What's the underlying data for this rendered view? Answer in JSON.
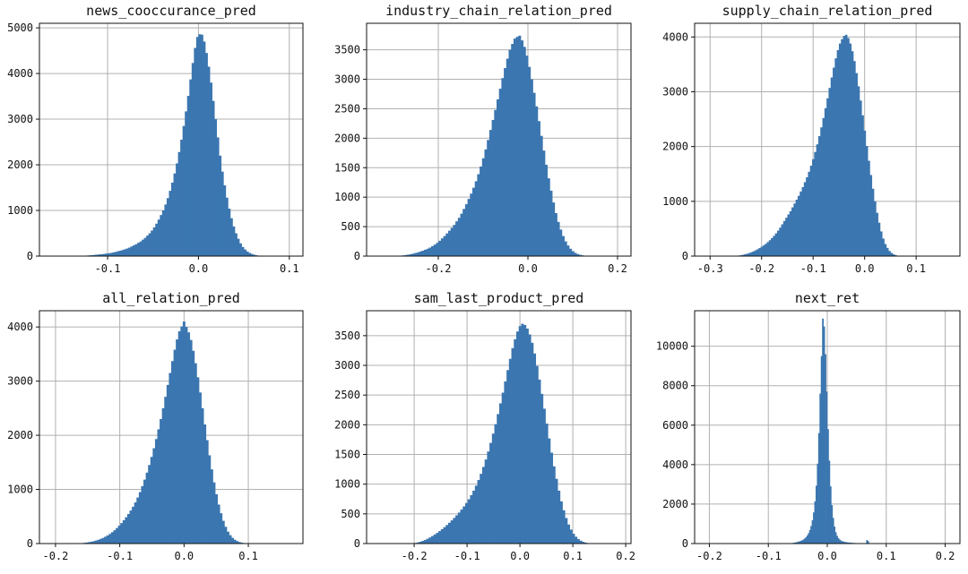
{
  "chart_data": [
    {
      "type": "bar",
      "title": "news_cooccurance_pred",
      "xlim": [
        -0.175,
        0.115
      ],
      "ylim": [
        0,
        5100
      ],
      "xticks": [
        -0.1,
        0.0,
        0.1
      ],
      "xtick_labels": [
        "-0.1",
        "0.0",
        "0.1"
      ],
      "yticks": [
        0,
        1000,
        2000,
        3000,
        4000,
        5000
      ],
      "ytick_labels": [
        "0",
        "1000",
        "2000",
        "3000",
        "4000",
        "5000"
      ],
      "grid": true,
      "color": "#3b76b0",
      "bins": {
        "start": -0.15,
        "end": 0.1,
        "count": 100
      },
      "heights": [
        0,
        0,
        0,
        0,
        0,
        0,
        0,
        0,
        0,
        8,
        10,
        14,
        18,
        22,
        28,
        32,
        38,
        42,
        48,
        56,
        62,
        70,
        80,
        92,
        105,
        118,
        132,
        148,
        165,
        185,
        210,
        235,
        260,
        290,
        320,
        360,
        400,
        450,
        500,
        560,
        630,
        710,
        800,
        900,
        1000,
        1130,
        1270,
        1430,
        1610,
        1810,
        2030,
        2280,
        2550,
        2850,
        3170,
        3510,
        3870,
        4230,
        4560,
        4800,
        4860,
        4850,
        4700,
        4450,
        4150,
        3800,
        3400,
        3000,
        2600,
        2200,
        1850,
        1550,
        1280,
        1040,
        830,
        650,
        500,
        380,
        280,
        200,
        145,
        100,
        70,
        48,
        30,
        18,
        10,
        5,
        0,
        0,
        0,
        0,
        0,
        0,
        0,
        0,
        0,
        0,
        0,
        0
      ]
    },
    {
      "type": "bar",
      "title": "industry_chain_relation_pred",
      "xlim": [
        -0.36,
        0.23
      ],
      "ylim": [
        0,
        3950
      ],
      "xticks": [
        -0.2,
        0.0,
        0.2
      ],
      "xtick_labels": [
        "-0.2",
        "0.0",
        "0.2"
      ],
      "yticks": [
        0,
        500,
        1000,
        1500,
        2000,
        2500,
        3000,
        3500
      ],
      "ytick_labels": [
        "0",
        "500",
        "1000",
        "1500",
        "2000",
        "2500",
        "3000",
        "3500"
      ],
      "grid": true,
      "color": "#3b76b0",
      "bins": {
        "start": -0.34,
        "end": 0.2,
        "count": 100
      },
      "heights": [
        0,
        0,
        0,
        0,
        0,
        0,
        0,
        0,
        0,
        5,
        8,
        12,
        18,
        25,
        32,
        42,
        52,
        64,
        78,
        92,
        108,
        125,
        145,
        170,
        195,
        225,
        260,
        300,
        340,
        385,
        430,
        480,
        530,
        590,
        650,
        720,
        800,
        880,
        970,
        1060,
        1160,
        1270,
        1390,
        1520,
        1660,
        1810,
        1970,
        2140,
        2310,
        2480,
        2660,
        2840,
        3020,
        3190,
        3350,
        3500,
        3600,
        3690,
        3720,
        3740,
        3660,
        3550,
        3400,
        3210,
        3000,
        2770,
        2540,
        2290,
        2040,
        1790,
        1550,
        1320,
        1110,
        910,
        730,
        580,
        450,
        340,
        250,
        180,
        125,
        85,
        55,
        35,
        22,
        13,
        7,
        3,
        0,
        0,
        0,
        0,
        0,
        0,
        0,
        0,
        0,
        0,
        0,
        0
      ]
    },
    {
      "type": "bar",
      "title": "supply_chain_relation_pred",
      "xlim": [
        -0.33,
        0.185
      ],
      "ylim": [
        0,
        4250
      ],
      "xticks": [
        -0.3,
        -0.2,
        -0.1,
        0.0,
        0.1
      ],
      "xtick_labels": [
        "-0.3",
        "-0.2",
        "-0.1",
        "0.0",
        "0.1"
      ],
      "yticks": [
        0,
        1000,
        2000,
        3000,
        4000
      ],
      "ytick_labels": [
        "0",
        "1000",
        "2000",
        "3000",
        "4000"
      ],
      "grid": true,
      "color": "#3b76b0",
      "bins": {
        "start": -0.25,
        "end": 0.15,
        "count": 100
      },
      "heights": [
        6,
        10,
        16,
        24,
        34,
        44,
        56,
        70,
        86,
        104,
        124,
        146,
        170,
        196,
        224,
        256,
        290,
        328,
        370,
        415,
        465,
        520,
        580,
        640,
        700,
        760,
        820,
        890,
        960,
        1030,
        1100,
        1180,
        1260,
        1350,
        1440,
        1540,
        1650,
        1770,
        1900,
        2040,
        2190,
        2350,
        2520,
        2700,
        2880,
        3070,
        3260,
        3440,
        3610,
        3760,
        3880,
        3960,
        4020,
        4040,
        3980,
        3880,
        3740,
        3560,
        3340,
        3100,
        2840,
        2570,
        2290,
        2010,
        1740,
        1480,
        1230,
        1000,
        790,
        610,
        450,
        320,
        220,
        150,
        95,
        58,
        34,
        18,
        8,
        3,
        0,
        0,
        0,
        0,
        0,
        0,
        0,
        0,
        0,
        0,
        0,
        0,
        0,
        0,
        0,
        0,
        0,
        0,
        0,
        0
      ]
    },
    {
      "type": "bar",
      "title": "all_relation_pred",
      "xlim": [
        -0.225,
        0.185
      ],
      "ylim": [
        0,
        4300
      ],
      "xticks": [
        -0.2,
        -0.1,
        0.0,
        0.1
      ],
      "xtick_labels": [
        "-0.2",
        "-0.1",
        "0.0",
        "0.1"
      ],
      "yticks": [
        0,
        1000,
        2000,
        3000,
        4000
      ],
      "ytick_labels": [
        "0",
        "1000",
        "2000",
        "3000",
        "4000"
      ],
      "grid": true,
      "color": "#3b76b0",
      "bins": {
        "start": -0.2,
        "end": 0.16,
        "count": 100
      },
      "heights": [
        0,
        0,
        0,
        0,
        0,
        0,
        0,
        0,
        0,
        0,
        4,
        8,
        13,
        19,
        26,
        34,
        44,
        56,
        70,
        86,
        104,
        126,
        150,
        178,
        210,
        246,
        286,
        330,
        378,
        430,
        486,
        546,
        610,
        680,
        760,
        850,
        950,
        1060,
        1180,
        1310,
        1450,
        1600,
        1760,
        1930,
        2110,
        2300,
        2500,
        2710,
        2930,
        3150,
        3370,
        3580,
        3770,
        3920,
        4010,
        4100,
        4000,
        3900,
        3760,
        3560,
        3330,
        3070,
        2790,
        2500,
        2200,
        1910,
        1630,
        1370,
        1130,
        910,
        720,
        560,
        420,
        310,
        220,
        155,
        105,
        70,
        45,
        28,
        16,
        9,
        4,
        0,
        0,
        0,
        0,
        0,
        0,
        0,
        0,
        0,
        0,
        0,
        0,
        0,
        0,
        0,
        0,
        0
      ]
    },
    {
      "type": "bar",
      "title": "sam_last_product_pred",
      "xlim": [
        -0.29,
        0.21
      ],
      "ylim": [
        0,
        3920
      ],
      "xticks": [
        -0.2,
        -0.1,
        0.0,
        0.1,
        0.2
      ],
      "xtick_labels": [
        "-0.2",
        "-0.1",
        "0.0",
        "0.1",
        "0.2"
      ],
      "yticks": [
        0,
        500,
        1000,
        1500,
        2000,
        2500,
        3000,
        3500
      ],
      "ytick_labels": [
        "0",
        "500",
        "1000",
        "1500",
        "2000",
        "2500",
        "3000",
        "3500"
      ],
      "grid": true,
      "color": "#3b76b0",
      "bins": {
        "start": -0.26,
        "end": 0.2,
        "count": 100
      },
      "heights": [
        0,
        0,
        0,
        0,
        0,
        0,
        0,
        0,
        0,
        0,
        0,
        0,
        4,
        10,
        18,
        30,
        44,
        60,
        80,
        102,
        126,
        152,
        180,
        210,
        242,
        276,
        312,
        350,
        390,
        432,
        476,
        522,
        572,
        625,
        682,
        745,
        815,
        890,
        975,
        1070,
        1175,
        1290,
        1415,
        1550,
        1695,
        1850,
        2010,
        2180,
        2360,
        2540,
        2730,
        2920,
        3110,
        3290,
        3440,
        3570,
        3660,
        3700,
        3680,
        3620,
        3520,
        3380,
        3200,
        2990,
        2760,
        2520,
        2270,
        2020,
        1770,
        1530,
        1300,
        1090,
        890,
        710,
        560,
        430,
        320,
        235,
        165,
        115,
        75,
        48,
        28,
        15,
        7,
        3,
        0,
        0,
        0,
        0,
        0,
        0,
        0,
        0,
        0,
        0,
        0,
        0,
        0,
        0
      ]
    },
    {
      "type": "bar",
      "title": "next_ret",
      "xlim": [
        -0.225,
        0.225
      ],
      "ylim": [
        0,
        11800
      ],
      "xticks": [
        -0.2,
        -0.1,
        0.0,
        0.1,
        0.2
      ],
      "xtick_labels": [
        "-0.2",
        "-0.1",
        "0.0",
        "0.1",
        "0.2"
      ],
      "yticks": [
        0,
        2000,
        4000,
        6000,
        8000,
        10000
      ],
      "ytick_labels": [
        "0",
        "2000",
        "4000",
        "6000",
        "8000",
        "10000"
      ],
      "grid": true,
      "color": "#3b76b0",
      "bins": {
        "start": -0.11,
        "end": 0.11,
        "count": 100
      },
      "heights": [
        0,
        0,
        0,
        0,
        0,
        0,
        0,
        0,
        0,
        0,
        0,
        0,
        0,
        0,
        0,
        0,
        0,
        0,
        0,
        0,
        8,
        14,
        22,
        32,
        44,
        58,
        74,
        92,
        112,
        136,
        166,
        204,
        254,
        320,
        408,
        524,
        680,
        890,
        1180,
        1580,
        2140,
        2930,
        4050,
        5600,
        7600,
        9500,
        11400,
        11000,
        9600,
        7700,
        5800,
        4200,
        2900,
        1950,
        1300,
        860,
        570,
        390,
        275,
        200,
        150,
        120,
        98,
        82,
        70,
        60,
        52,
        45,
        39,
        34,
        30,
        26,
        23,
        20,
        17,
        15,
        13,
        11,
        10,
        9,
        180,
        120,
        8,
        6,
        4,
        2,
        0,
        0,
        0,
        0,
        0,
        0,
        0,
        0,
        0,
        0,
        0,
        0,
        0,
        0
      ]
    }
  ]
}
